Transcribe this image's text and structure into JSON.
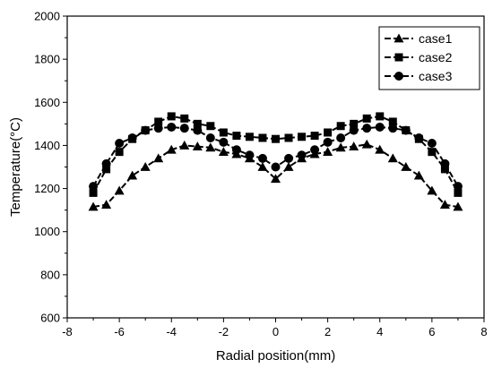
{
  "chart_data": {
    "type": "line",
    "xlabel": "Radial position(mm)",
    "ylabel": "Temperature(°C)",
    "xlim": [
      -8,
      8
    ],
    "ylim": [
      600,
      2000
    ],
    "xticks": [
      -8,
      -6,
      -4,
      -2,
      0,
      2,
      4,
      6,
      8
    ],
    "yticks": [
      600,
      800,
      1000,
      1200,
      1400,
      1600,
      1800,
      2000
    ],
    "grid": false,
    "legend_position": "top-right",
    "series": [
      {
        "name": "case1",
        "marker": "triangle",
        "color": "#000000",
        "x": [
          -7,
          -6.5,
          -6,
          -5.5,
          -5,
          -4.5,
          -4,
          -3.5,
          -3,
          -2.5,
          -2,
          -1.5,
          -1,
          -0.5,
          0,
          0.5,
          1,
          1.5,
          2,
          2.5,
          3,
          3.5,
          4,
          4.5,
          5,
          5.5,
          6,
          6.5,
          7
        ],
        "y": [
          1115,
          1125,
          1190,
          1260,
          1300,
          1340,
          1380,
          1400,
          1395,
          1390,
          1370,
          1360,
          1340,
          1300,
          1245,
          1300,
          1340,
          1360,
          1370,
          1390,
          1395,
          1405,
          1380,
          1340,
          1300,
          1260,
          1190,
          1125,
          1115
        ]
      },
      {
        "name": "case2",
        "marker": "square",
        "color": "#000000",
        "x": [
          -7,
          -6.5,
          -6,
          -5.5,
          -5,
          -4.5,
          -4,
          -3.5,
          -3,
          -2.5,
          -2,
          -1.5,
          -1,
          -0.5,
          0,
          0.5,
          1,
          1.5,
          2,
          2.5,
          3,
          3.5,
          4,
          4.5,
          5,
          5.5,
          6,
          6.5,
          7
        ],
        "y": [
          1180,
          1290,
          1370,
          1430,
          1470,
          1510,
          1535,
          1525,
          1500,
          1490,
          1460,
          1445,
          1440,
          1435,
          1430,
          1435,
          1440,
          1445,
          1460,
          1490,
          1500,
          1525,
          1535,
          1510,
          1470,
          1430,
          1370,
          1290,
          1180
        ]
      },
      {
        "name": "case3",
        "marker": "circle",
        "color": "#000000",
        "x": [
          -7,
          -6.5,
          -6,
          -5.5,
          -5,
          -4.5,
          -4,
          -3.5,
          -3,
          -2.5,
          -2,
          -1.5,
          -1,
          -0.5,
          0,
          0.5,
          1,
          1.5,
          2,
          2.5,
          3,
          3.5,
          4,
          4.5,
          5,
          5.5,
          6,
          6.5,
          7
        ],
        "y": [
          1210,
          1315,
          1410,
          1435,
          1470,
          1480,
          1485,
          1480,
          1470,
          1435,
          1415,
          1380,
          1355,
          1340,
          1300,
          1340,
          1355,
          1380,
          1415,
          1435,
          1470,
          1480,
          1485,
          1480,
          1470,
          1435,
          1410,
          1315,
          1210
        ]
      }
    ]
  }
}
